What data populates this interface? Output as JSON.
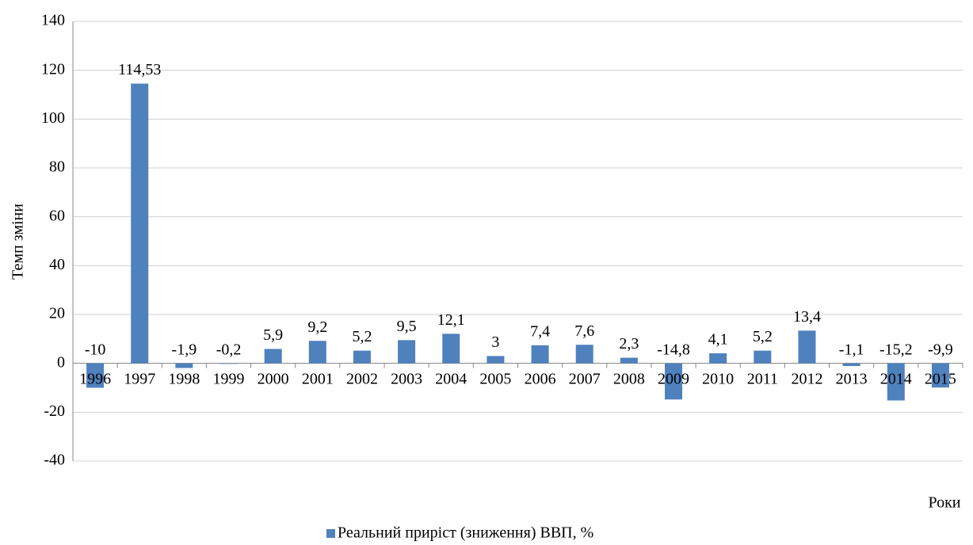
{
  "chart_data": {
    "type": "bar",
    "y_label": "Темп зміни",
    "x_label": "Роки",
    "categories": [
      "1996",
      "1997",
      "1998",
      "1999",
      "2000",
      "2001",
      "2002",
      "2003",
      "2004",
      "2005",
      "2006",
      "2007",
      "2008",
      "2009",
      "2010",
      "2011",
      "2012",
      "2013",
      "2014",
      "2015"
    ],
    "series": [
      {
        "name": "Реальний приріст (зниження) ВВП, %",
        "color": "#4f81bd",
        "values": [
          -10,
          114.53,
          -1.9,
          -0.2,
          5.9,
          9.2,
          5.2,
          9.5,
          12.1,
          3,
          7.4,
          7.6,
          2.3,
          -14.8,
          4.1,
          5.2,
          13.4,
          -1.1,
          -15.2,
          -9.9
        ],
        "value_labels": [
          "-10",
          "114,53",
          "-1,9",
          "-0,2",
          "5,9",
          "9,2",
          "5,2",
          "9,5",
          "12,1",
          "3",
          "7,4",
          "7,6",
          "2,3",
          "-14,8",
          "4,1",
          "5,2",
          "13,4",
          "-1,1",
          "-15,2",
          "-9,9"
        ]
      }
    ],
    "ylim": [
      -40,
      140
    ],
    "yticks": [
      -40,
      -20,
      0,
      20,
      40,
      60,
      80,
      100,
      120,
      140
    ],
    "grid": true,
    "legend": "bottom"
  }
}
